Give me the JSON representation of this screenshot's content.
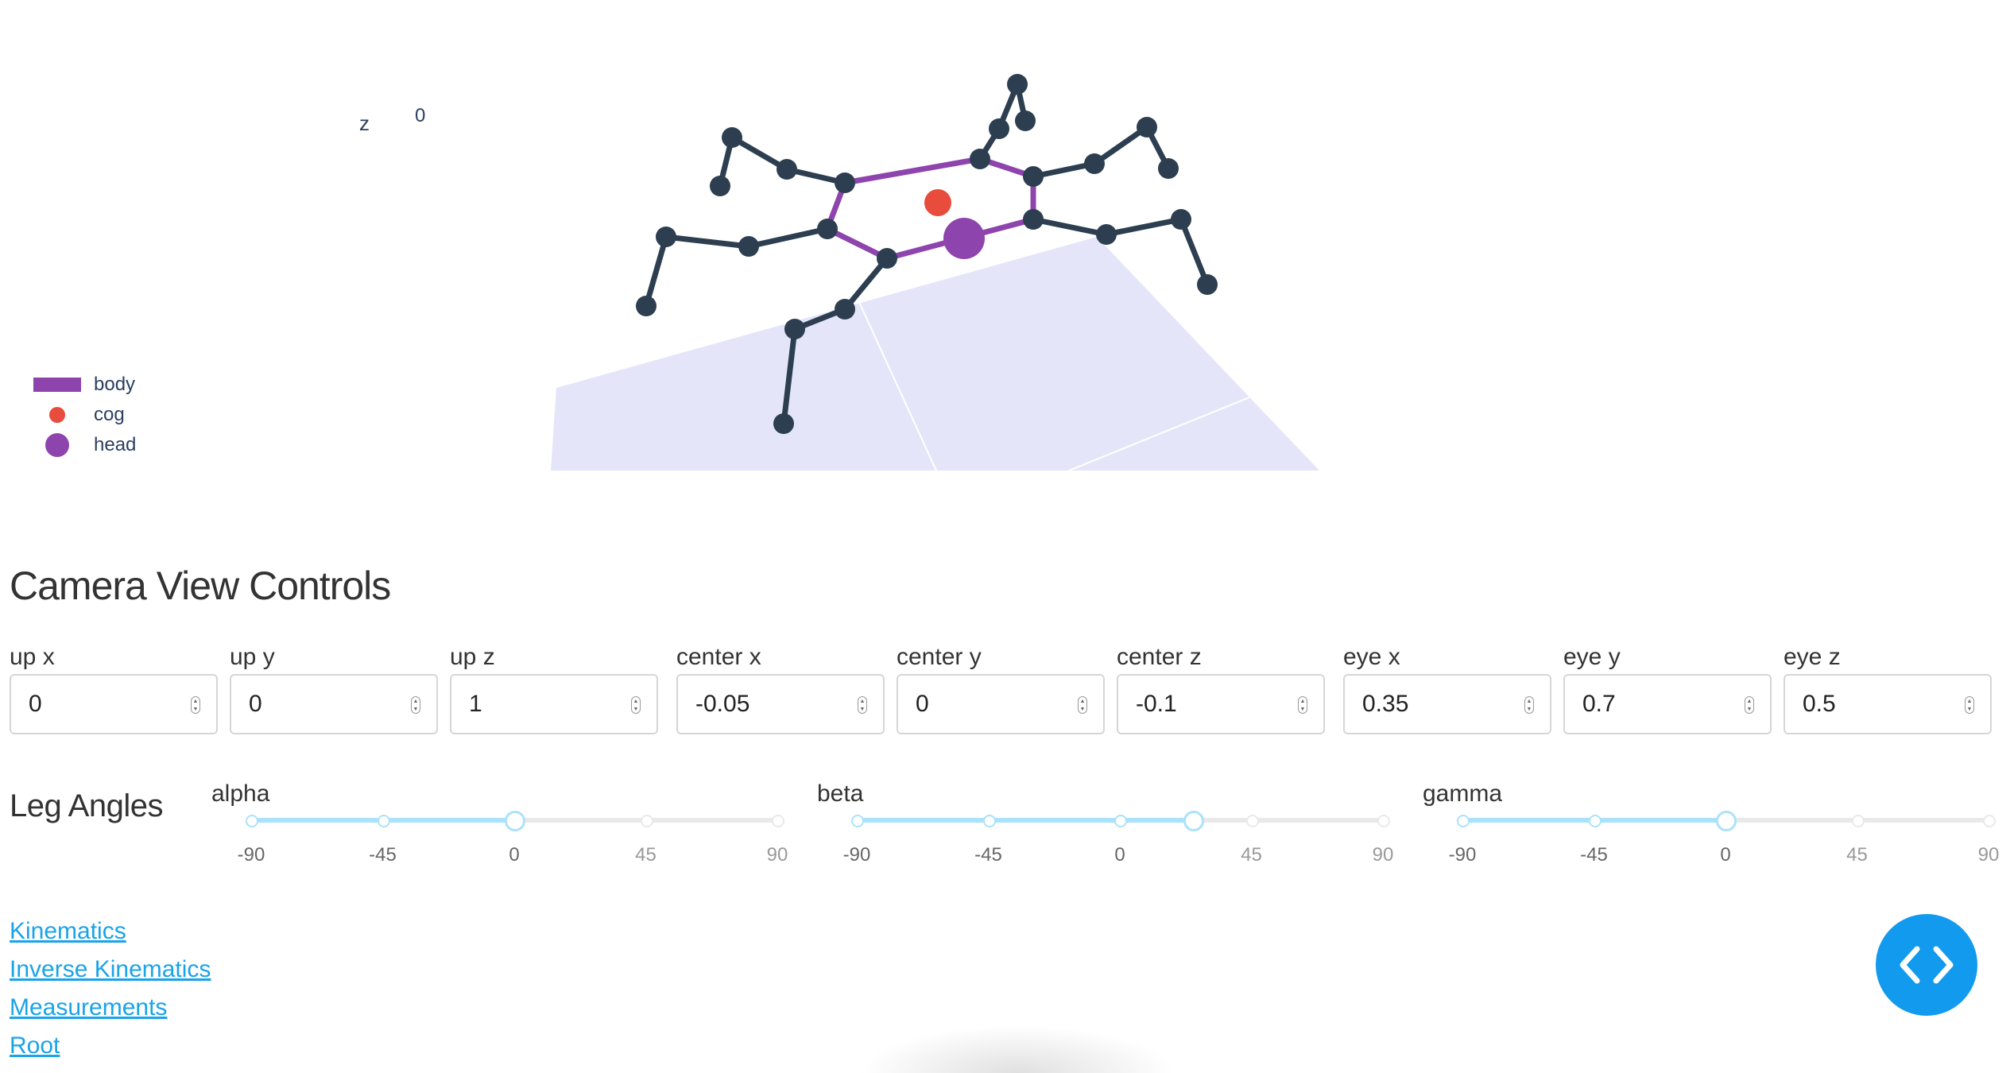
{
  "plot": {
    "axis_z_label": "z",
    "axis_tick": "0",
    "legend": [
      {
        "name": "body",
        "color": "#8e44ad",
        "icon": "line-swatch"
      },
      {
        "name": "cog",
        "color": "#e74c3c",
        "icon": "small-dot"
      },
      {
        "name": "head",
        "color": "#8e44ad",
        "icon": "large-dot"
      }
    ],
    "colors": {
      "legs": "#2c3e50",
      "body": "#8e44ad",
      "cog": "#e74c3c",
      "ground": "#e5e5fa"
    }
  },
  "camera": {
    "title": "Camera View Controls",
    "fields": [
      {
        "label": "up x",
        "value": "0"
      },
      {
        "label": "up y",
        "value": "0"
      },
      {
        "label": "up z",
        "value": "1"
      },
      {
        "label": "center x",
        "value": "-0.05"
      },
      {
        "label": "center y",
        "value": "0"
      },
      {
        "label": "center z",
        "value": "-0.1"
      },
      {
        "label": "eye x",
        "value": "0.35"
      },
      {
        "label": "eye y",
        "value": "0.7"
      },
      {
        "label": "eye z",
        "value": "0.5"
      }
    ]
  },
  "leg_angles": {
    "title": "Leg Angles",
    "min": -90,
    "max": 90,
    "sliders": [
      {
        "label": "alpha",
        "value": 0,
        "marks": [
          "-90",
          "-45",
          "0",
          "45",
          "90"
        ]
      },
      {
        "label": "beta",
        "value": 25,
        "marks": [
          "-90",
          "-45",
          "0",
          "45",
          "90"
        ]
      },
      {
        "label": "gamma",
        "value": 0,
        "marks": [
          "-90",
          "-45",
          "0",
          "45",
          "90"
        ]
      }
    ],
    "accent_color": "#abe2fb"
  },
  "links": [
    "Kinematics",
    "Inverse Kinematics",
    "Measurements",
    "Root"
  ],
  "fab": {
    "icon": "code-brackets-icon",
    "color": "#129aee"
  }
}
